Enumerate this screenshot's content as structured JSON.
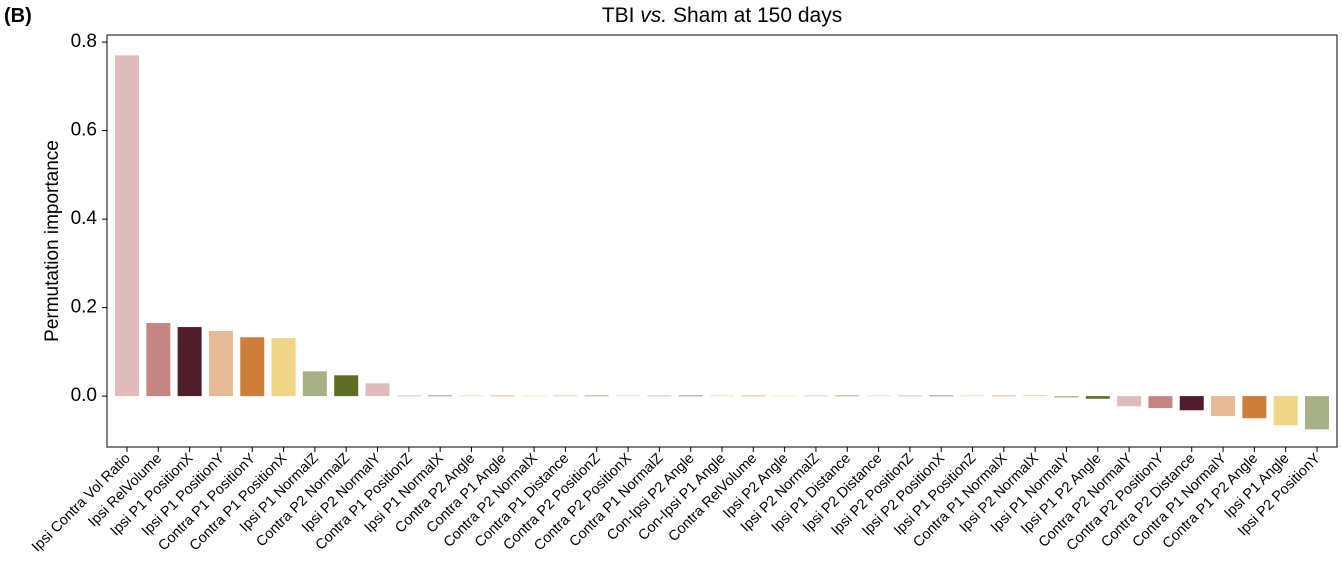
{
  "panel_label": "(B)",
  "chart_data": {
    "type": "bar",
    "title_parts": [
      "TBI",
      "vs.",
      "Sham at 150 days"
    ],
    "y_label": "Permutation importance",
    "categories": [
      "Ipsi Contra Vol Ratio",
      "Ipsi RelVolume",
      "Ipsi P1 PositionX",
      "Ipsi P1 PositionY",
      "Contra P1 PositionY",
      "Contra P1 PositionX",
      "Ipsi P1 NormalZ",
      "Contra P2 NormalZ",
      "Ipsi P2 NormalY",
      "Contra P1 PositionZ",
      "Ipsi P1 NormalX",
      "Contra P2 Angle",
      "Contra P1 Angle",
      "Contra P2 NormalX",
      "Contra P1 Distance",
      "Contra P2 PositionZ",
      "Contra P2 PositionX",
      "Contra P1 NormalZ",
      "Con-Ipsi P2 Angle",
      "Con-Ipsi P1 Angle",
      "Contra RelVolume",
      "Ipsi P2 Angle",
      "Ipsi P2 NormalZ",
      "Ipsi P1 Distance",
      "Ipsi P2 Distance",
      "Ipsi P2 PositionZ",
      "Ipsi P2 PositionX",
      "Ipsi P1 PositionZ",
      "Contra P1 NormalX",
      "Ipsi P2 NormalX",
      "Ipsi P1 NormalY",
      "Ipsi P1 P2 Angle",
      "Contra P2 NormalY",
      "Contra P2 PositionY",
      "Contra P2 Distance",
      "Contra P1 NormalY",
      "Contra P1 P2 Angle",
      "Ipsi P1 Angle",
      "Ipsi P2 PositionY"
    ],
    "values": [
      0.77,
      0.165,
      0.156,
      0.147,
      0.133,
      0.131,
      0.056,
      0.047,
      0.029,
      0.001,
      0.001,
      0.001,
      0.001,
      0.001,
      0.001,
      0.001,
      0.001,
      0.001,
      0.001,
      0.001,
      0.001,
      0.001,
      0.001,
      0.001,
      0.001,
      0.001,
      0.001,
      0.001,
      0.001,
      0.002,
      -0.003,
      -0.006,
      -0.023,
      -0.027,
      -0.032,
      -0.045,
      -0.05,
      -0.066,
      -0.075
    ],
    "colors": [
      "#dfbbbb",
      "#c48585",
      "#4e1f2a",
      "#e8b995",
      "#cf7d3b",
      "#efd585",
      "#a8b087",
      "#5e6e25"
    ],
    "ylim": [
      -0.115,
      0.816
    ],
    "yticks": [
      {
        "value": 0,
        "label": "0.0"
      },
      0.2,
      0.4,
      0.6,
      0.8
    ]
  }
}
